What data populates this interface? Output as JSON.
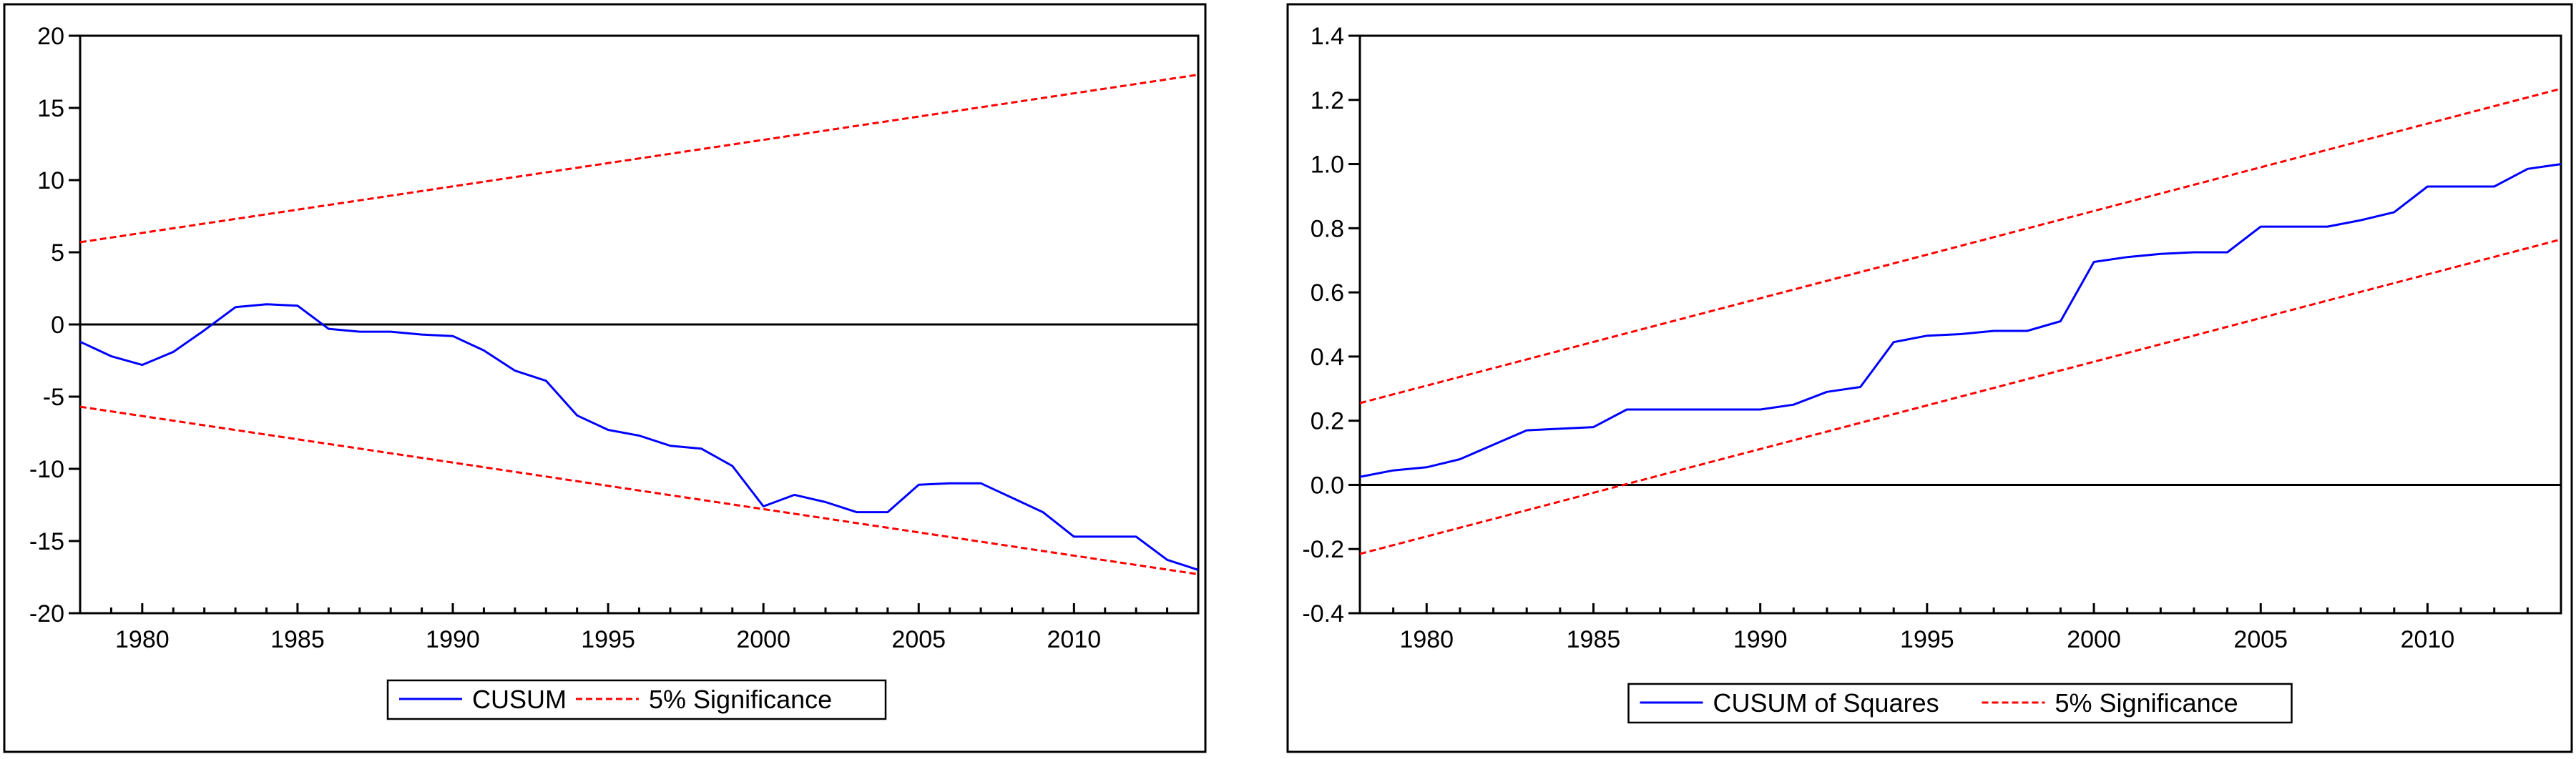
{
  "colors": {
    "series": "#0000ff",
    "significance": "#ff0000",
    "zero_line": "#000000",
    "frame": "#000000",
    "background": "#ffffff"
  },
  "chart_data": [
    {
      "type": "line",
      "title": "",
      "xlabel": "",
      "ylabel": "",
      "xlim": [
        1978,
        2014
      ],
      "ylim": [
        -20,
        20
      ],
      "x_ticks": [
        "1980",
        "1985",
        "1990",
        "1995",
        "2000",
        "2005",
        "2010"
      ],
      "y_ticks": [
        "20",
        "15",
        "10",
        "5",
        "0",
        "-5",
        "-10",
        "-15",
        "-20"
      ],
      "grid": false,
      "legend_position": "bottom-center",
      "zero_line": 0,
      "series": [
        {
          "name": "CUSUM",
          "style": "solid",
          "color": "#0000ff",
          "x": [
            1978,
            1979,
            1980,
            1981,
            1982,
            1983,
            1984,
            1985,
            1986,
            1987,
            1988,
            1989,
            1990,
            1991,
            1992,
            1993,
            1994,
            1995,
            1996,
            1997,
            1998,
            1999,
            2000,
            2001,
            2002,
            2003,
            2004,
            2005,
            2006,
            2007,
            2008,
            2009,
            2010,
            2011,
            2012,
            2013,
            2014
          ],
          "values": [
            -1.2,
            -2.2,
            -2.8,
            -1.9,
            -0.4,
            1.2,
            1.4,
            1.3,
            -0.3,
            -0.5,
            -0.5,
            -0.7,
            -0.8,
            -1.8,
            -3.2,
            -3.9,
            -6.3,
            -7.3,
            -7.7,
            -8.4,
            -8.6,
            -9.8,
            -12.6,
            -11.8,
            -12.3,
            -13.0,
            -13.0,
            -11.1,
            -11.0,
            -11.0,
            -12.0,
            -13.0,
            -14.7,
            -14.7,
            -14.7,
            -16.3,
            -17.0
          ]
        },
        {
          "name": "5% Significance",
          "style": "dashed",
          "color": "#ff0000",
          "x": [
            1978,
            2014
          ],
          "values": [
            5.7,
            17.3
          ]
        },
        {
          "name": "",
          "style": "dashed",
          "color": "#ff0000",
          "x": [
            1978,
            2014
          ],
          "values": [
            -5.7,
            -17.3
          ]
        }
      ],
      "legend": [
        {
          "label": "CUSUM",
          "style": "solid",
          "color": "#0000ff"
        },
        {
          "label": "5% Significance",
          "style": "dashed",
          "color": "#ff0000"
        }
      ]
    },
    {
      "type": "line",
      "title": "",
      "xlabel": "",
      "ylabel": "",
      "xlim": [
        1978,
        2014
      ],
      "ylim": [
        -0.4,
        1.4
      ],
      "x_ticks": [
        "1980",
        "1985",
        "1990",
        "1995",
        "2000",
        "2005",
        "2010"
      ],
      "y_ticks": [
        "1.4",
        "1.2",
        "1.0",
        "0.8",
        "0.6",
        "0.4",
        "0.2",
        "0.0",
        "-0.2",
        "-0.4"
      ],
      "grid": false,
      "legend_position": "bottom-center",
      "zero_line": 0,
      "series": [
        {
          "name": "CUSUM of Squares",
          "style": "solid",
          "color": "#0000ff",
          "x": [
            1978,
            1979,
            1980,
            1981,
            1982,
            1983,
            1984,
            1985,
            1986,
            1987,
            1988,
            1989,
            1990,
            1991,
            1992,
            1993,
            1994,
            1995,
            1996,
            1997,
            1998,
            1999,
            2000,
            2001,
            2002,
            2003,
            2004,
            2005,
            2006,
            2007,
            2008,
            2009,
            2010,
            2011,
            2012,
            2013,
            2014
          ],
          "values": [
            0.025,
            0.045,
            0.055,
            0.08,
            0.125,
            0.17,
            0.175,
            0.18,
            0.235,
            0.235,
            0.235,
            0.235,
            0.235,
            0.25,
            0.29,
            0.305,
            0.445,
            0.465,
            0.47,
            0.48,
            0.48,
            0.51,
            0.695,
            0.71,
            0.72,
            0.725,
            0.725,
            0.805,
            0.805,
            0.805,
            0.825,
            0.85,
            0.93,
            0.93,
            0.93,
            0.985,
            1.0
          ]
        },
        {
          "name": "5% Significance",
          "style": "dashed",
          "color": "#ff0000",
          "x": [
            1978,
            2014
          ],
          "values": [
            0.255,
            1.235
          ]
        },
        {
          "name": "",
          "style": "dashed",
          "color": "#ff0000",
          "x": [
            1978,
            2014
          ],
          "values": [
            -0.215,
            0.765
          ]
        }
      ],
      "legend": [
        {
          "label": "CUSUM of Squares",
          "style": "solid",
          "color": "#0000ff"
        },
        {
          "label": "5% Significance",
          "style": "dashed",
          "color": "#ff0000"
        }
      ]
    }
  ]
}
